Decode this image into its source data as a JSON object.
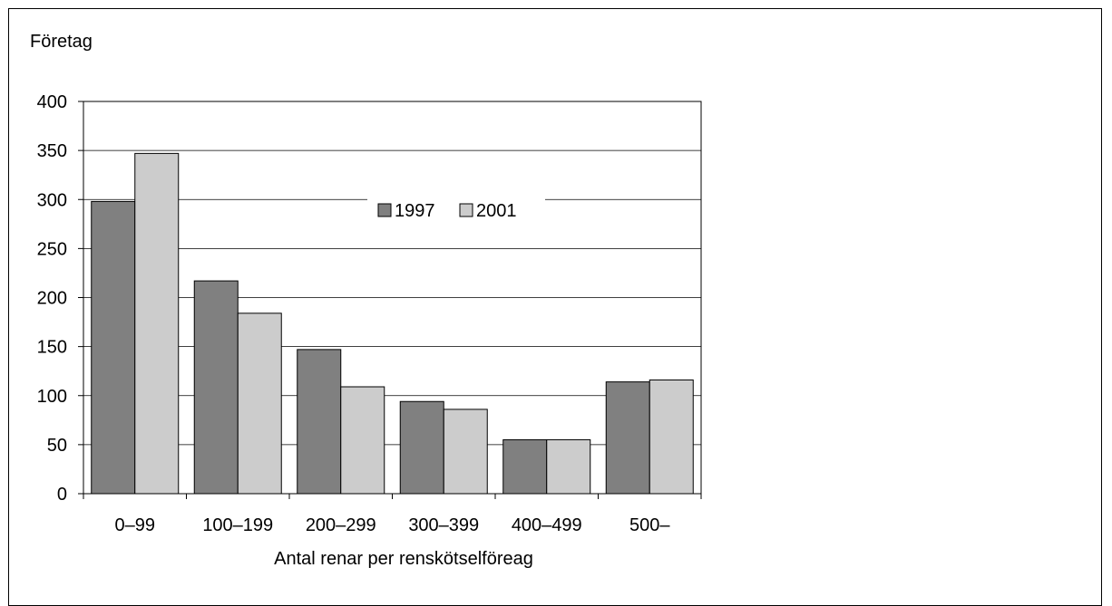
{
  "chart_data": {
    "type": "bar",
    "title": "",
    "ylabel": "Företag",
    "xlabel": "Antal renar per renskötselföreag",
    "categories": [
      "0–99",
      "100–199",
      "200–299",
      "300–399",
      "400–499",
      "500–"
    ],
    "series": [
      {
        "name": "1997",
        "color": "#808080",
        "values": [
          298,
          217,
          147,
          94,
          55,
          114
        ]
      },
      {
        "name": "2001",
        "color": "#cccccc",
        "values": [
          347,
          184,
          109,
          86,
          55,
          116
        ]
      }
    ],
    "ylim": [
      0,
      400
    ],
    "yticks": [
      0,
      50,
      100,
      150,
      200,
      250,
      300,
      350,
      400
    ],
    "grid": true,
    "legend": "top-center"
  }
}
